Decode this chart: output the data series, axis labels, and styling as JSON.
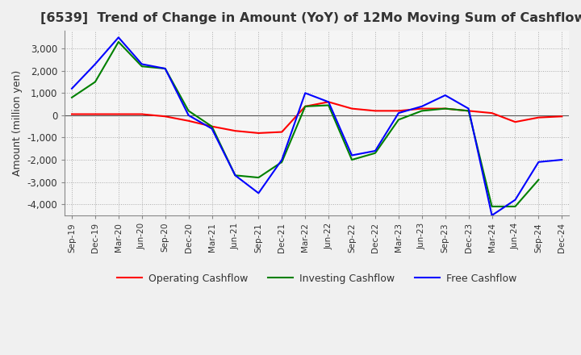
{
  "title": "[6539]  Trend of Change in Amount (YoY) of 12Mo Moving Sum of Cashflows",
  "ylabel": "Amount (million yen)",
  "ylim": [
    -4500,
    3800
  ],
  "yticks": [
    -4000,
    -3000,
    -2000,
    -1000,
    0,
    1000,
    2000,
    3000
  ],
  "x_labels": [
    "Sep-19",
    "Dec-19",
    "Mar-20",
    "Jun-20",
    "Sep-20",
    "Dec-20",
    "Mar-21",
    "Jun-21",
    "Sep-21",
    "Dec-21",
    "Mar-22",
    "Jun-22",
    "Sep-22",
    "Dec-22",
    "Mar-23",
    "Jun-23",
    "Sep-23",
    "Dec-23",
    "Mar-24",
    "Jun-24",
    "Sep-24",
    "Dec-24"
  ],
  "operating": [
    50,
    50,
    50,
    50,
    -50,
    -250,
    -500,
    -700,
    -800,
    -750,
    400,
    600,
    300,
    200,
    200,
    300,
    300,
    200,
    100,
    -300,
    -100,
    -50
  ],
  "investing": [
    800,
    1500,
    3300,
    2200,
    2100,
    200,
    -500,
    -2700,
    -2800,
    -2100,
    400,
    450,
    -2000,
    -1700,
    -200,
    200,
    300,
    200,
    -4100,
    -4100,
    -2900,
    null
  ],
  "free": [
    1200,
    2300,
    3500,
    2300,
    2100,
    0,
    -600,
    -2700,
    -3500,
    -2000,
    1000,
    600,
    -1800,
    -1600,
    100,
    400,
    900,
    300,
    -4500,
    -3800,
    -2100,
    -2000
  ],
  "operating_color": "#ff0000",
  "investing_color": "#008000",
  "free_color": "#0000ff",
  "bg_color": "#f0f0f0",
  "plot_bg_color": "#f5f5f5",
  "grid_color": "#aaaaaa",
  "title_color": "#333333",
  "title_fontsize": 11.5
}
